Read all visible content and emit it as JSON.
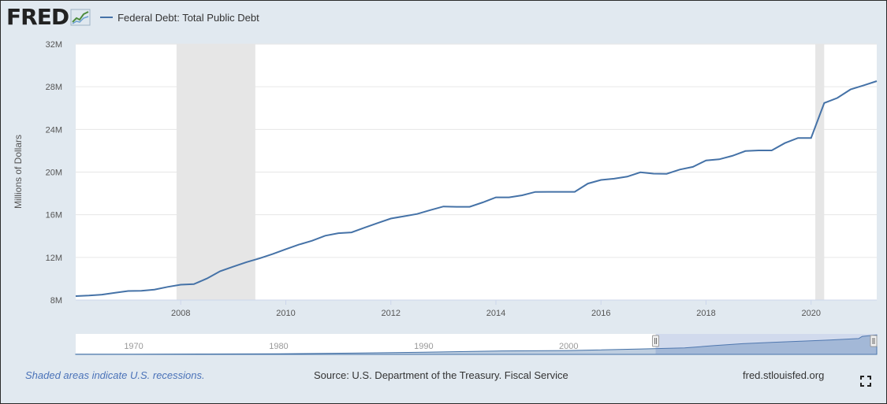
{
  "header": {
    "logo_text": "FRED",
    "legend_label": "Federal Debt: Total Public Debt",
    "series_color": "#4572a7"
  },
  "chart_data": {
    "type": "line",
    "title": "Federal Debt: Total Public Debt",
    "ylabel": "Millions of Dollars",
    "xlabel": "",
    "xlim": [
      2006.0,
      2021.25
    ],
    "ylim": [
      8,
      32
    ],
    "y_ticks": [
      {
        "value": 8,
        "label": "8M"
      },
      {
        "value": 12,
        "label": "12M"
      },
      {
        "value": 16,
        "label": "16M"
      },
      {
        "value": 20,
        "label": "20M"
      },
      {
        "value": 24,
        "label": "24M"
      },
      {
        "value": 28,
        "label": "28M"
      },
      {
        "value": 32,
        "label": "32M"
      }
    ],
    "x_ticks": [
      {
        "value": 2008,
        "label": "2008"
      },
      {
        "value": 2010,
        "label": "2010"
      },
      {
        "value": 2012,
        "label": "2012"
      },
      {
        "value": 2014,
        "label": "2014"
      },
      {
        "value": 2016,
        "label": "2016"
      },
      {
        "value": 2018,
        "label": "2018"
      },
      {
        "value": 2020,
        "label": "2020"
      }
    ],
    "recessions": [
      {
        "start": 2007.92,
        "end": 2009.42
      },
      {
        "start": 2020.08,
        "end": 2020.25
      }
    ],
    "series": [
      {
        "name": "Federal Debt: Total Public Debt",
        "units": "Millions of Dollars (M)",
        "points": [
          [
            2006.0,
            8.37
          ],
          [
            2006.25,
            8.42
          ],
          [
            2006.5,
            8.51
          ],
          [
            2006.75,
            8.68
          ],
          [
            2007.0,
            8.85
          ],
          [
            2007.25,
            8.87
          ],
          [
            2007.5,
            8.98
          ],
          [
            2007.75,
            9.23
          ],
          [
            2008.0,
            9.44
          ],
          [
            2008.25,
            9.49
          ],
          [
            2008.5,
            10.02
          ],
          [
            2008.75,
            10.7
          ],
          [
            2009.0,
            11.13
          ],
          [
            2009.25,
            11.55
          ],
          [
            2009.5,
            11.91
          ],
          [
            2009.75,
            12.31
          ],
          [
            2010.0,
            12.77
          ],
          [
            2010.25,
            13.2
          ],
          [
            2010.5,
            13.56
          ],
          [
            2010.75,
            14.03
          ],
          [
            2011.0,
            14.27
          ],
          [
            2011.25,
            14.34
          ],
          [
            2011.5,
            14.79
          ],
          [
            2011.75,
            15.22
          ],
          [
            2012.0,
            15.64
          ],
          [
            2012.25,
            15.86
          ],
          [
            2012.5,
            16.07
          ],
          [
            2012.75,
            16.43
          ],
          [
            2013.0,
            16.77
          ],
          [
            2013.25,
            16.74
          ],
          [
            2013.5,
            16.74
          ],
          [
            2013.75,
            17.16
          ],
          [
            2014.0,
            17.63
          ],
          [
            2014.25,
            17.63
          ],
          [
            2014.5,
            17.82
          ],
          [
            2014.75,
            18.14
          ],
          [
            2015.0,
            18.15
          ],
          [
            2015.25,
            18.15
          ],
          [
            2015.5,
            18.15
          ],
          [
            2015.75,
            18.92
          ],
          [
            2016.0,
            19.26
          ],
          [
            2016.25,
            19.38
          ],
          [
            2016.5,
            19.57
          ],
          [
            2016.75,
            19.98
          ],
          [
            2017.0,
            19.85
          ],
          [
            2017.25,
            19.84
          ],
          [
            2017.5,
            20.24
          ],
          [
            2017.75,
            20.49
          ],
          [
            2018.0,
            21.09
          ],
          [
            2018.25,
            21.2
          ],
          [
            2018.5,
            21.52
          ],
          [
            2018.75,
            21.97
          ],
          [
            2019.0,
            22.03
          ],
          [
            2019.25,
            22.03
          ],
          [
            2019.5,
            22.72
          ],
          [
            2019.75,
            23.2
          ],
          [
            2020.0,
            23.2
          ],
          [
            2020.25,
            26.48
          ],
          [
            2020.5,
            26.95
          ],
          [
            2020.75,
            27.75
          ],
          [
            2021.0,
            28.13
          ],
          [
            2021.25,
            28.53
          ]
        ]
      }
    ],
    "navigator": {
      "labels": [
        {
          "value": 1970,
          "label": "1970"
        },
        {
          "value": 1980,
          "label": "1980"
        },
        {
          "value": 1990,
          "label": "1990"
        },
        {
          "value": 2000,
          "label": "2000"
        }
      ],
      "range": [
        1966,
        2021.25
      ],
      "selected": [
        2006.0,
        2021.25
      ],
      "overview": [
        [
          1966,
          0.32
        ],
        [
          1970,
          0.37
        ],
        [
          1975,
          0.53
        ],
        [
          1980,
          0.91
        ],
        [
          1985,
          1.82
        ],
        [
          1990,
          3.23
        ],
        [
          1995,
          4.97
        ],
        [
          2000,
          5.67
        ],
        [
          2005,
          7.93
        ],
        [
          2008,
          9.44
        ],
        [
          2010,
          12.77
        ],
        [
          2012,
          15.64
        ],
        [
          2014,
          17.63
        ],
        [
          2016,
          19.26
        ],
        [
          2018,
          21.09
        ],
        [
          2020,
          23.2
        ],
        [
          2020.25,
          26.48
        ],
        [
          2021.25,
          28.53
        ]
      ]
    }
  },
  "footer": {
    "note": "Shaded areas indicate U.S. recessions.",
    "source": "Source: U.S. Department of the Treasury. Fiscal Service",
    "site": "fred.stlouisfed.org"
  }
}
